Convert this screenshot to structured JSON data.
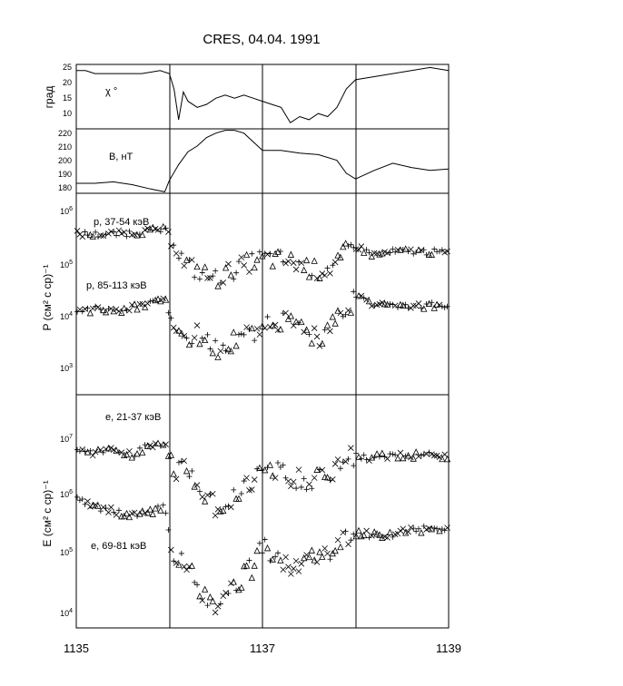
{
  "title": "CRES, 04.04. 1991",
  "x_ticks": [
    "1135",
    "1137",
    "1139"
  ],
  "panels": [
    {
      "ylabel": "град",
      "annotation": "χ °",
      "yticks": [
        "25",
        "20",
        "15",
        "10"
      ]
    },
    {
      "annotation": "B, нТ",
      "yticks": [
        "220",
        "210",
        "200",
        "190",
        "180"
      ]
    },
    {
      "ylabel": "P (см² с ср)⁻¹",
      "annotations": [
        "p, 37-54 кэВ",
        "p, 85-113 кэВ"
      ]
    },
    {
      "ylabel": "E (см² с ср)⁻¹",
      "annotations": [
        "e, 21-37 кэВ",
        "e, 69-81 кэВ"
      ]
    }
  ],
  "colors": {
    "ink": "#000000",
    "background": "#ffffff"
  },
  "chart_data": [
    {
      "type": "line",
      "name": "chi",
      "ylim": [
        5,
        26
      ],
      "x": [
        1135.0,
        1135.1,
        1135.2,
        1135.3,
        1135.4,
        1135.5,
        1135.6,
        1135.7,
        1135.8,
        1135.9,
        1136.0,
        1136.05,
        1136.1,
        1136.15,
        1136.2,
        1136.3,
        1136.4,
        1136.5,
        1136.6,
        1136.7,
        1136.8,
        1136.9,
        1137.0,
        1137.1,
        1137.2,
        1137.3,
        1137.4,
        1137.5,
        1137.6,
        1137.7,
        1137.8,
        1137.9,
        1138.0,
        1138.2,
        1138.4,
        1138.6,
        1138.8,
        1139.0
      ],
      "y": [
        24,
        24,
        23,
        23,
        23,
        23,
        23,
        23,
        23.5,
        24,
        23,
        18,
        8,
        17,
        14,
        12,
        13,
        15,
        16,
        15,
        16,
        15,
        14,
        13,
        12,
        7,
        9,
        8,
        10,
        9,
        12,
        18,
        21,
        22,
        23,
        24,
        25,
        24
      ]
    },
    {
      "type": "line",
      "name": "B",
      "ylim": [
        176,
        221
      ],
      "x": [
        1135.0,
        1135.2,
        1135.4,
        1135.6,
        1135.8,
        1135.95,
        1136.0,
        1136.1,
        1136.2,
        1136.3,
        1136.4,
        1136.5,
        1136.6,
        1136.7,
        1136.8,
        1136.9,
        1137.0,
        1137.2,
        1137.4,
        1137.6,
        1137.8,
        1137.9,
        1138.0,
        1138.2,
        1138.4,
        1138.6,
        1138.8,
        1139.0
      ],
      "y": [
        183,
        183,
        184,
        182,
        179,
        177,
        185,
        196,
        205,
        209,
        215,
        218,
        220,
        220,
        218,
        212,
        206,
        206,
        204,
        203,
        199,
        190,
        186,
        192,
        197,
        194,
        192,
        193
      ]
    },
    {
      "type": "scatter",
      "name": "protons",
      "yscale": "log",
      "ylim": [
        300,
        1500000
      ],
      "series": [
        {
          "marker": "mixed",
          "x": [
            1135.0,
            1135.2,
            1135.4,
            1135.6,
            1135.8,
            1135.95,
            1136.05,
            1136.15,
            1136.3,
            1136.5,
            1136.7,
            1136.9,
            1137.0,
            1137.2,
            1137.4,
            1137.6,
            1137.8,
            1137.9,
            1138.0,
            1138.2,
            1138.4,
            1138.6,
            1138.8,
            1139.0
          ],
          "y": [
            270000,
            260000,
            270000,
            280000,
            310000,
            320000,
            200000,
            80000,
            55000,
            40000,
            60000,
            85000,
            95000,
            90000,
            75000,
            55000,
            70000,
            130000,
            160000,
            110000,
            125000,
            130000,
            125000,
            120000
          ]
        },
        {
          "marker": "mixed",
          "x": [
            1135.0,
            1135.2,
            1135.4,
            1135.6,
            1135.8,
            1135.95,
            1136.05,
            1136.15,
            1136.3,
            1136.5,
            1136.7,
            1136.9,
            1137.0,
            1137.2,
            1137.4,
            1137.6,
            1137.8,
            1137.9,
            1138.0,
            1138.2,
            1138.4,
            1138.6,
            1138.8,
            1139.0
          ],
          "y": [
            10000,
            11000,
            10000,
            12000,
            14000,
            17000,
            5000,
            3000,
            4000,
            2000,
            3000,
            4000,
            6000,
            7000,
            5000,
            3000,
            7000,
            10000,
            20000,
            14000,
            13000,
            12000,
            13000,
            13000
          ]
        }
      ]
    },
    {
      "type": "scatter",
      "name": "electrons",
      "yscale": "log",
      "ylim": [
        6000,
        40000000
      ],
      "series": [
        {
          "marker": "mixed",
          "x": [
            1135.0,
            1135.2,
            1135.4,
            1135.6,
            1135.8,
            1135.95,
            1136.05,
            1136.15,
            1136.3,
            1136.5,
            1136.7,
            1136.9,
            1137.0,
            1137.2,
            1137.4,
            1137.6,
            1137.8,
            1137.9,
            1138.0,
            1138.2,
            1138.4,
            1138.6,
            1138.8,
            1139.0
          ],
          "y": [
            5500000,
            4500000,
            5000000,
            4000000,
            6000000,
            6500000,
            2000000,
            2500000,
            1500000,
            600000,
            900000,
            1500000,
            2800000,
            2200000,
            1600000,
            1800000,
            2500000,
            3500000,
            4000000,
            3700000,
            4200000,
            4000000,
            4200000,
            3800000
          ]
        },
        {
          "marker": "mixed",
          "x": [
            1135.0,
            1135.2,
            1135.4,
            1135.6,
            1135.8,
            1135.95,
            1136.05,
            1136.15,
            1136.3,
            1136.5,
            1136.7,
            1136.9,
            1137.0,
            1137.2,
            1137.4,
            1137.6,
            1137.8,
            1137.9,
            1138.0,
            1138.2,
            1138.4,
            1138.6,
            1138.8,
            1139.0
          ],
          "y": [
            800000,
            600000,
            500000,
            400000,
            500000,
            550000,
            60000,
            80000,
            30000,
            15000,
            30000,
            60000,
            150000,
            60000,
            70000,
            80000,
            120000,
            180000,
            220000,
            200000,
            200000,
            240000,
            260000,
            240000
          ]
        }
      ]
    }
  ]
}
